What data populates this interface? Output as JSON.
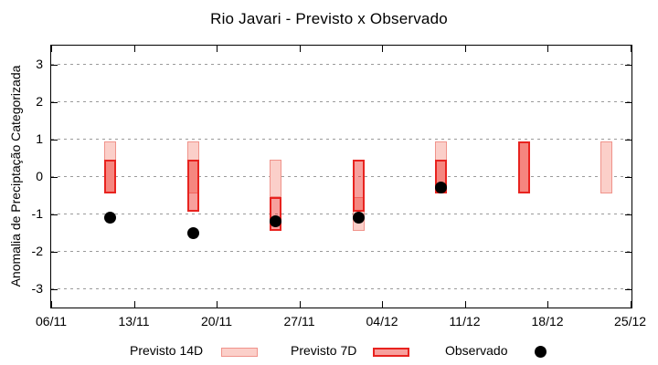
{
  "title": "Rio Javari - Previsto x Observado",
  "axes": {
    "y_label": "Anomalia de Preciptação Categorizada",
    "y_ticks": [
      "3",
      "2",
      "1",
      "0",
      "-1",
      "-2",
      "-3"
    ],
    "x_ticks": [
      "06/11",
      "13/11",
      "20/11",
      "27/11",
      "04/12",
      "11/12",
      "18/12",
      "25/12"
    ]
  },
  "legend": {
    "items": [
      {
        "label": "Previsto 14D",
        "swatch": "pink-box"
      },
      {
        "label": "Previsto 7D",
        "swatch": "red-box"
      },
      {
        "label": "Observado",
        "swatch": "black-dot"
      }
    ]
  },
  "colors": {
    "forecast14_fill": "#fbcfc9",
    "forecast14_border": "#f0938b",
    "forecast7_fill": "rgba(238,45,38,0.45)",
    "forecast7_border": "#e8231f",
    "observed": "#000000",
    "grid": "#9a9a9a"
  },
  "chart_data": {
    "type": "bar",
    "title": "Rio Javari - Previsto x Observado",
    "xlabel": "",
    "ylabel": "Anomalia de Preciptação Categorizada",
    "ylim": [
      -3.5,
      3.5
    ],
    "xlim": [
      "06/11",
      "25/12"
    ],
    "grid": true,
    "legend_position": "bottom",
    "x_tick_labels": [
      "06/11",
      "13/11",
      "20/11",
      "27/11",
      "04/12",
      "11/12",
      "18/12",
      "25/12"
    ],
    "y_tick_values": [
      3,
      2,
      1,
      0,
      -1,
      -2,
      -3
    ],
    "categories": [
      "11/11",
      "18/11",
      "25/11",
      "02/12",
      "09/12",
      "16/12",
      "23/12"
    ],
    "day_offsets_from_axis_start": [
      5,
      12,
      19,
      26,
      33,
      40,
      47
    ],
    "series": [
      {
        "name": "Previsto 14D",
        "kind": "range-bar",
        "ranges": [
          [
            -0.45,
            0.95
          ],
          [
            -0.45,
            0.95
          ],
          [
            -0.55,
            0.45
          ],
          [
            -1.45,
            -0.55
          ],
          [
            -0.45,
            0.95
          ],
          [
            -0.45,
            0.95
          ],
          [
            -0.45,
            0.95
          ]
        ]
      },
      {
        "name": "Previsto 7D",
        "kind": "range-bar",
        "ranges": [
          [
            -0.45,
            0.45
          ],
          [
            -0.95,
            0.45
          ],
          [
            -1.45,
            -0.55
          ],
          [
            -0.95,
            0.45
          ],
          [
            -0.45,
            0.45
          ],
          [
            -0.45,
            0.95
          ],
          null
        ]
      },
      {
        "name": "Observado",
        "kind": "scatter",
        "values": [
          -1.1,
          -1.5,
          -1.2,
          -1.1,
          -0.3,
          null,
          null
        ]
      }
    ]
  }
}
